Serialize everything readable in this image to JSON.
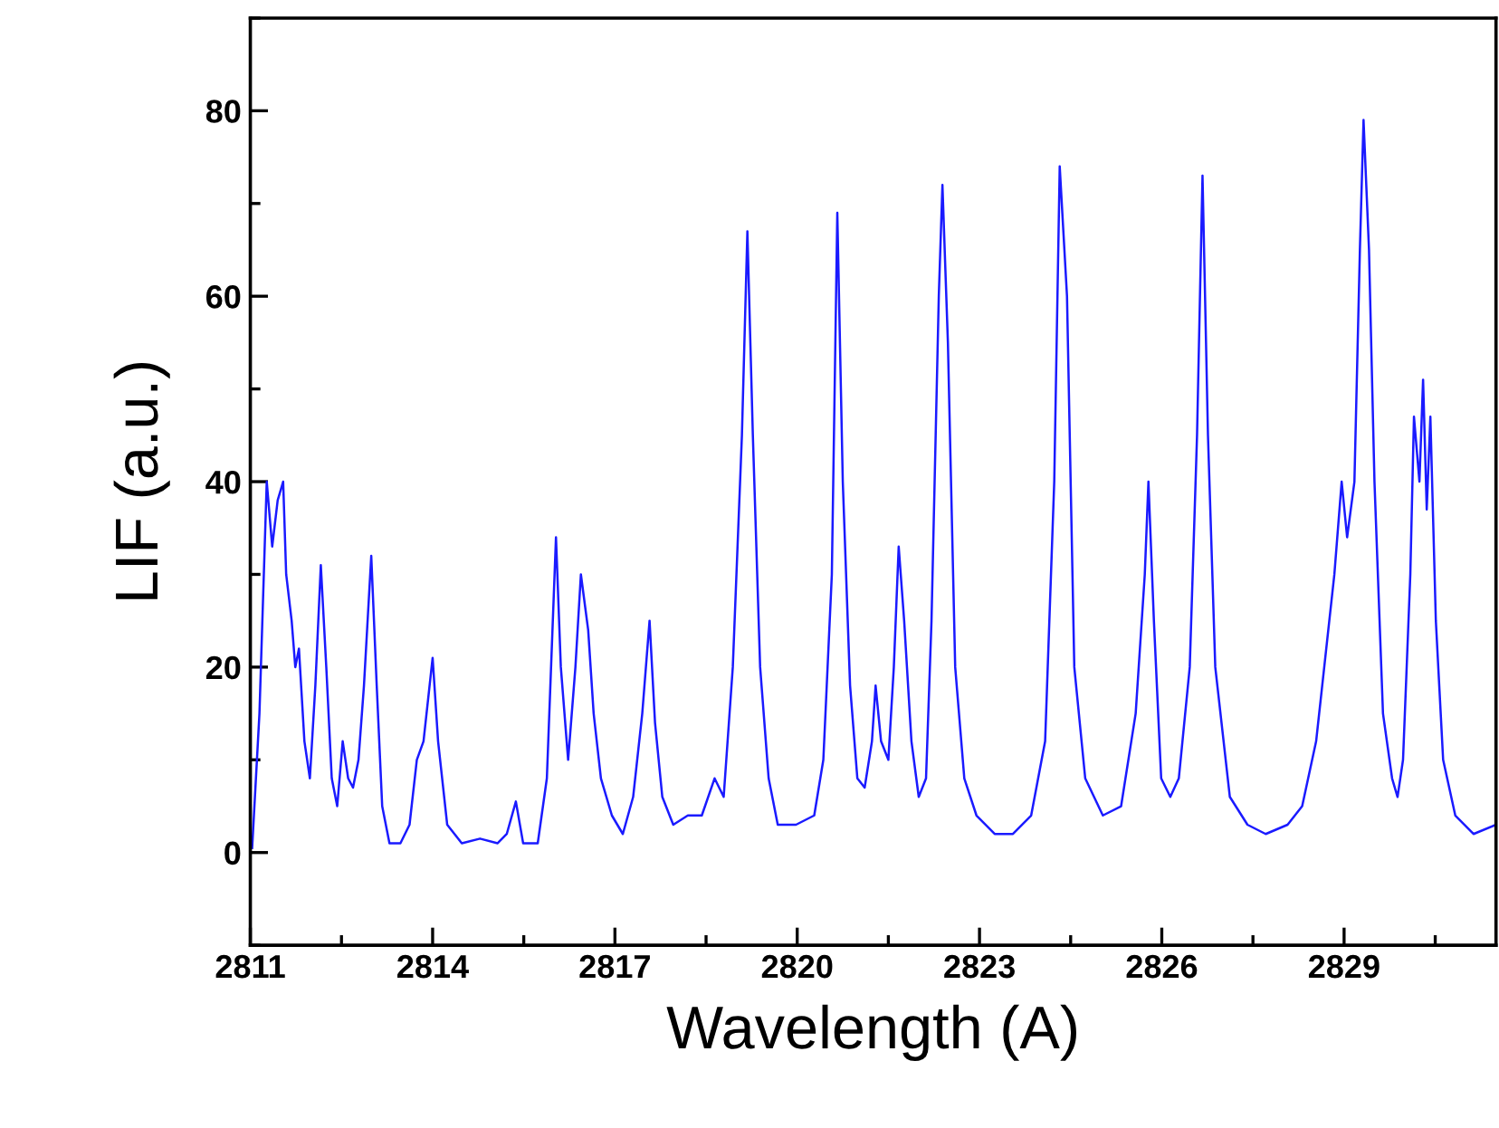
{
  "chart_data": {
    "type": "line",
    "xlabel": "Wavelength (A)",
    "ylabel": "LIF (a.u.)",
    "xlim": [
      2811,
      2831.5
    ],
    "xticks": [
      2811,
      2814,
      2817,
      2820,
      2823,
      2826,
      2829
    ],
    "ylim": [
      -10,
      90
    ],
    "yticks": [
      0,
      20,
      40,
      60,
      80
    ],
    "grid": false,
    "marker": "none",
    "line_style": "solid",
    "series": [
      {
        "color": "#1a1aff",
        "x": [
          2811.03,
          2811.15,
          2811.27,
          2811.36,
          2811.45,
          2811.54,
          2811.59,
          2811.68,
          2811.74,
          2811.8,
          2811.89,
          2811.98,
          2812.07,
          2812.16,
          2812.25,
          2812.34,
          2812.43,
          2812.52,
          2812.61,
          2812.69,
          2812.78,
          2812.87,
          2812.99,
          2813.08,
          2813.17,
          2813.29,
          2813.47,
          2813.62,
          2813.74,
          2813.85,
          2814.0,
          2814.09,
          2814.24,
          2814.48,
          2814.78,
          2815.07,
          2815.22,
          2815.37,
          2815.49,
          2815.73,
          2815.88,
          2816.03,
          2816.11,
          2816.23,
          2816.35,
          2816.44,
          2816.56,
          2816.65,
          2816.77,
          2816.95,
          2817.13,
          2817.3,
          2817.45,
          2817.57,
          2817.66,
          2817.78,
          2817.96,
          2818.2,
          2818.43,
          2818.64,
          2818.79,
          2818.94,
          2819.09,
          2819.18,
          2819.27,
          2819.39,
          2819.53,
          2819.68,
          2819.98,
          2820.28,
          2820.43,
          2820.57,
          2820.66,
          2820.75,
          2820.87,
          2820.99,
          2821.11,
          2821.23,
          2821.29,
          2821.38,
          2821.5,
          2821.59,
          2821.67,
          2821.76,
          2821.88,
          2822.0,
          2822.12,
          2822.21,
          2822.33,
          2822.39,
          2822.48,
          2822.6,
          2822.75,
          2822.95,
          2823.25,
          2823.55,
          2823.85,
          2824.08,
          2824.23,
          2824.32,
          2824.44,
          2824.56,
          2824.74,
          2825.03,
          2825.33,
          2825.57,
          2825.72,
          2825.78,
          2825.87,
          2825.99,
          2826.14,
          2826.28,
          2826.46,
          2826.58,
          2826.67,
          2826.76,
          2826.88,
          2827.12,
          2827.41,
          2827.71,
          2828.07,
          2828.31,
          2828.54,
          2828.84,
          2828.96,
          2829.05,
          2829.17,
          2829.26,
          2829.32,
          2829.41,
          2829.5,
          2829.64,
          2829.79,
          2829.88,
          2829.97,
          2830.09,
          2830.15,
          2830.24,
          2830.3,
          2830.36,
          2830.42,
          2830.51,
          2830.63,
          2830.83,
          2831.13,
          2831.5
        ],
        "values": [
          0.5,
          15,
          40,
          33,
          38,
          40,
          30,
          25,
          20,
          22,
          12,
          8,
          18,
          31,
          20,
          8,
          5,
          12,
          8,
          7,
          10,
          18,
          32,
          18,
          5,
          1,
          1,
          3,
          10,
          12,
          21,
          12,
          3,
          1,
          1.5,
          1,
          2,
          5.5,
          1,
          1,
          8,
          34,
          20,
          10,
          20,
          30,
          24,
          15,
          8,
          4,
          2,
          6,
          15,
          25,
          14,
          6,
          3,
          4,
          4,
          8,
          6,
          20,
          45,
          67,
          45,
          20,
          8,
          3,
          3,
          4,
          10,
          30,
          69,
          40,
          18,
          8,
          7,
          12,
          18,
          12,
          10,
          20,
          33,
          25,
          12,
          6,
          8,
          25,
          60,
          72,
          55,
          20,
          8,
          4,
          2,
          2,
          4,
          12,
          40,
          74,
          60,
          20,
          8,
          4,
          5,
          15,
          30,
          40,
          25,
          8,
          6,
          8,
          20,
          45,
          73,
          45,
          20,
          6,
          3,
          2,
          3,
          5,
          12,
          30,
          40,
          34,
          40,
          65,
          79,
          65,
          40,
          15,
          8,
          6,
          10,
          30,
          47,
          40,
          51,
          37,
          47,
          25,
          10,
          4,
          2,
          3
        ]
      }
    ]
  }
}
